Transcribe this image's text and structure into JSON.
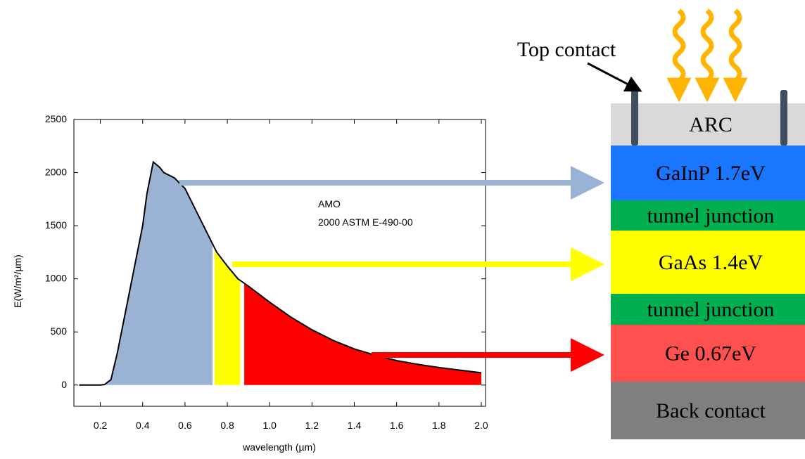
{
  "chart_data": {
    "type": "area",
    "x": [
      0.1,
      0.2,
      0.22,
      0.25,
      0.28,
      0.3,
      0.32,
      0.35,
      0.38,
      0.4,
      0.42,
      0.45,
      0.48,
      0.5,
      0.55,
      0.6,
      0.65,
      0.7,
      0.75,
      0.8,
      0.85,
      0.9,
      1.0,
      1.1,
      1.2,
      1.3,
      1.4,
      1.5,
      1.6,
      1.7,
      1.8,
      1.9,
      2.0
    ],
    "values": [
      0,
      0,
      5,
      50,
      300,
      500,
      700,
      1000,
      1300,
      1500,
      1800,
      2100,
      2050,
      2000,
      1950,
      1850,
      1650,
      1450,
      1250,
      1120,
      1000,
      930,
      780,
      640,
      520,
      420,
      340,
      280,
      230,
      195,
      165,
      140,
      115
    ],
    "color": "#000000",
    "bands": [
      {
        "range": [
          0.2,
          0.73
        ],
        "color": "#9ab3d5"
      },
      {
        "range": [
          0.74,
          0.86
        ],
        "color": "#ffff00"
      },
      {
        "range": [
          0.88,
          2.0
        ],
        "color": "#ff0000"
      }
    ],
    "xlim": [
      0.075,
      2.02
    ],
    "ylim": [
      -200,
      2500
    ],
    "xticks": [
      0.2,
      0.4,
      0.6,
      0.8,
      {
        "value": 1.0,
        "label": "1.0"
      },
      1.2,
      1.4,
      1.6,
      1.8,
      {
        "value": 2.0,
        "label": "2.0"
      }
    ],
    "yticks": [
      0,
      500,
      1000,
      1500,
      2000,
      2500
    ],
    "xlabel": "wavelength (µm)",
    "ylabel": "E(W/m²/µm)",
    "annotations": [
      "AMO",
      "2000 ASTM E-490-00"
    ]
  },
  "diagram": {
    "top_contact": "Top contact",
    "layers": [
      {
        "label": "ARC",
        "color": "#d9d9d9"
      },
      {
        "label": "GaInP 1.7eV",
        "color": "#1a75ff"
      },
      {
        "label": "tunnel junction",
        "color": "#00b050"
      },
      {
        "label": "GaAs 1.4eV",
        "color": "#ffff00"
      },
      {
        "label": "tunnel junction",
        "color": "#00b050"
      },
      {
        "label": "Ge 0.67eV",
        "color": "#ff5050"
      },
      {
        "label": "Back contact",
        "color": "#7f7f7f"
      }
    ]
  }
}
